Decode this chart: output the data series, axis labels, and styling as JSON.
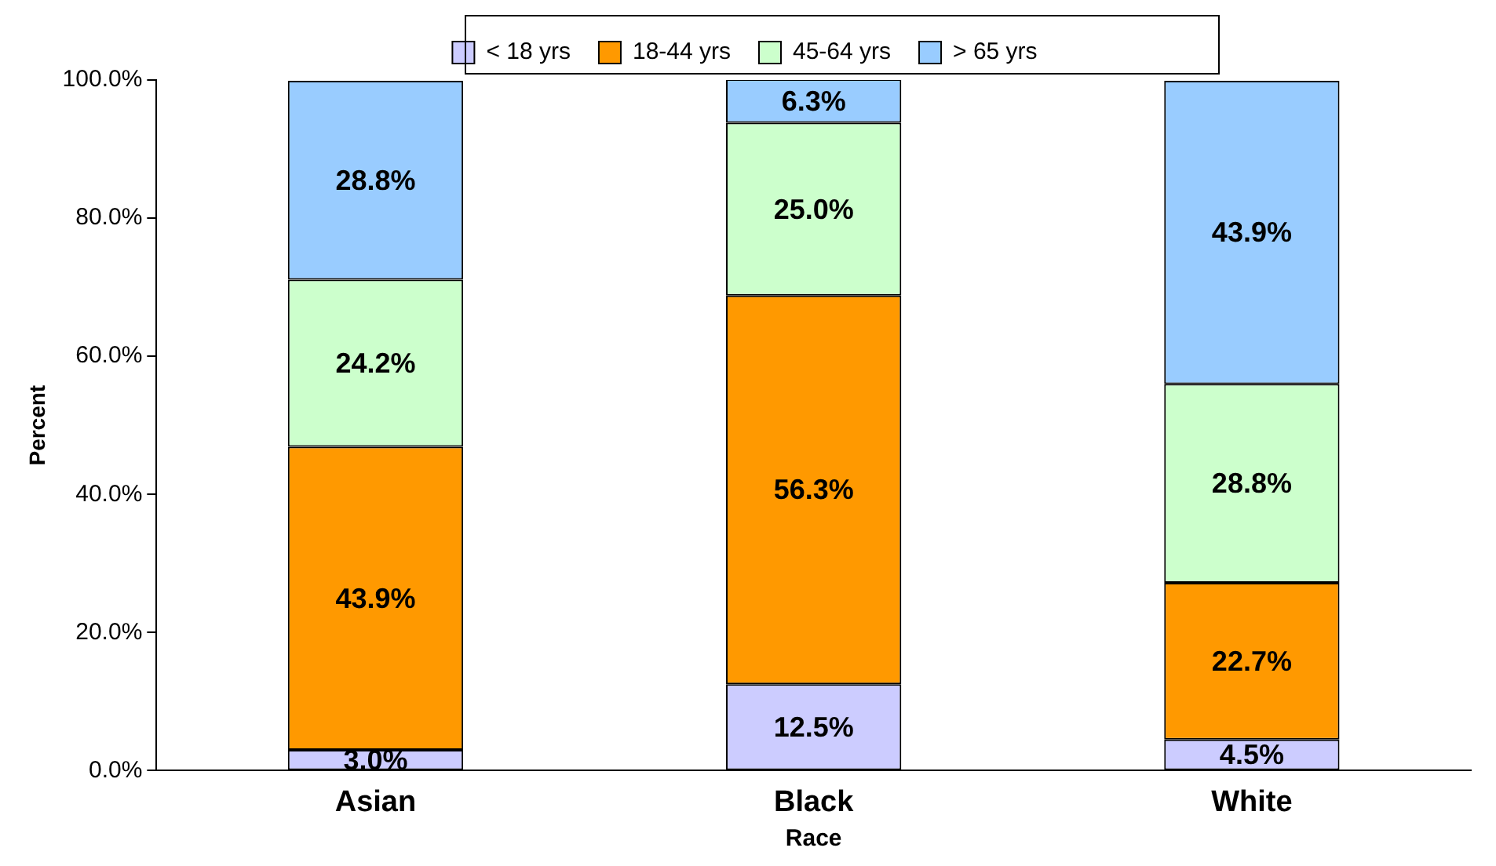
{
  "chart_data": {
    "type": "bar",
    "stacked": true,
    "xlabel": "Race",
    "ylabel": "Percent",
    "categories": [
      "Asian",
      "Black",
      "White"
    ],
    "series": [
      {
        "name": "< 18 yrs",
        "color": "#ccccff",
        "values": [
          3.0,
          12.5,
          4.5
        ]
      },
      {
        "name": "18-44 yrs",
        "color": "#ff9900",
        "values": [
          43.9,
          56.3,
          22.7
        ]
      },
      {
        "name": "45-64 yrs",
        "color": "#ccffcc",
        "values": [
          24.2,
          25.0,
          28.8
        ]
      },
      {
        "name": "> 65 yrs",
        "color": "#99ccff",
        "values": [
          28.8,
          6.3,
          43.9
        ]
      }
    ],
    "value_labels": [
      [
        "3.0%",
        "12.5%",
        "4.5%"
      ],
      [
        "43.9%",
        "56.3%",
        "22.7%"
      ],
      [
        "24.2%",
        "25.0%",
        "28.8%"
      ],
      [
        "28.8%",
        "6.3%",
        "43.9%"
      ]
    ],
    "ylim": [
      0,
      100
    ],
    "yticks": [
      {
        "value": 0,
        "label": "0.0%"
      },
      {
        "value": 20,
        "label": "20.0%"
      },
      {
        "value": 40,
        "label": "40.0%"
      },
      {
        "value": 60,
        "label": "60.0%"
      },
      {
        "value": 80,
        "label": "80.0%"
      },
      {
        "value": 100,
        "label": "100.0%"
      }
    ],
    "grid": false,
    "legend": "top"
  }
}
